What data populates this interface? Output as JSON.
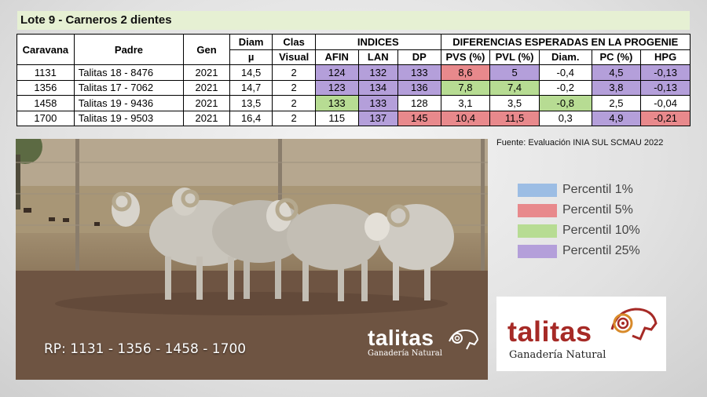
{
  "title": "Lote 9 - Carneros 2 dientes",
  "table": {
    "headers": {
      "caravana": "Caravana",
      "padre": "Padre",
      "gen": "Gen",
      "diam_top": "Diam",
      "diam_unit": "µ",
      "clas_top": "Clas",
      "clas_bottom": "Visual",
      "indices": "INDICES",
      "afin": "AFIN",
      "lan": "LAN",
      "dp": "DP",
      "diferencias": "DIFERENCIAS ESPERADAS EN LA PROGENIE",
      "pvs": "PVS (%)",
      "pvl": "PVL (%)",
      "diam2": "Diam.",
      "pc": "PC (%)",
      "hpg": "HPG"
    },
    "rows": [
      {
        "caravana": "1131",
        "padre": "Talitas 18 - 8476",
        "gen": "2021",
        "diam": "14,5",
        "clas": "2",
        "afin": "124",
        "lan": "132",
        "dp": "133",
        "pvs": "8,6",
        "pvl": "5",
        "diam2": "-0,4",
        "pc": "4,5",
        "hpg": "-0,13"
      },
      {
        "caravana": "1356",
        "padre": "Talitas 17 - 7062",
        "gen": "2021",
        "diam": "14,7",
        "clas": "2",
        "afin": "123",
        "lan": "134",
        "dp": "136",
        "pvs": "7,8",
        "pvl": "7,4",
        "diam2": "-0,2",
        "pc": "3,8",
        "hpg": "-0,13"
      },
      {
        "caravana": "1458",
        "padre": "Talitas 19 - 9436",
        "gen": "2021",
        "diam": "13,5",
        "clas": "2",
        "afin": "133",
        "lan": "133",
        "dp": "128",
        "pvs": "3,1",
        "pvl": "3,5",
        "diam2": "-0,8",
        "pc": "2,5",
        "hpg": "-0,04"
      },
      {
        "caravana": "1700",
        "padre": "Talitas 19 - 9503",
        "gen": "2021",
        "diam": "16,4",
        "clas": "2",
        "afin": "115",
        "lan": "137",
        "dp": "145",
        "pvs": "10,4",
        "pvl": "11,5",
        "diam2": "0,3",
        "pc": "4,9",
        "hpg": "-0,21"
      }
    ]
  },
  "source": "Fuente: Evaluación INIA SUL SCMAU 2022",
  "legend": [
    {
      "label": "Percentil 1%",
      "color": "#9cbde4"
    },
    {
      "label": "Percentil 5%",
      "color": "#e8898c"
    },
    {
      "label": "Percentil 10%",
      "color": "#b7dc93"
    },
    {
      "label": "Percentil 25%",
      "color": "#b49fda"
    }
  ],
  "photo": {
    "caption": "RP: 1131 - 1356 - 1458 - 1700",
    "logo_word": "talitas",
    "logo_tag": "Ganadería Natural"
  },
  "logo": {
    "word": "talitas",
    "tag": "Ganadería Natural",
    "brand_color": "#a62a26"
  }
}
